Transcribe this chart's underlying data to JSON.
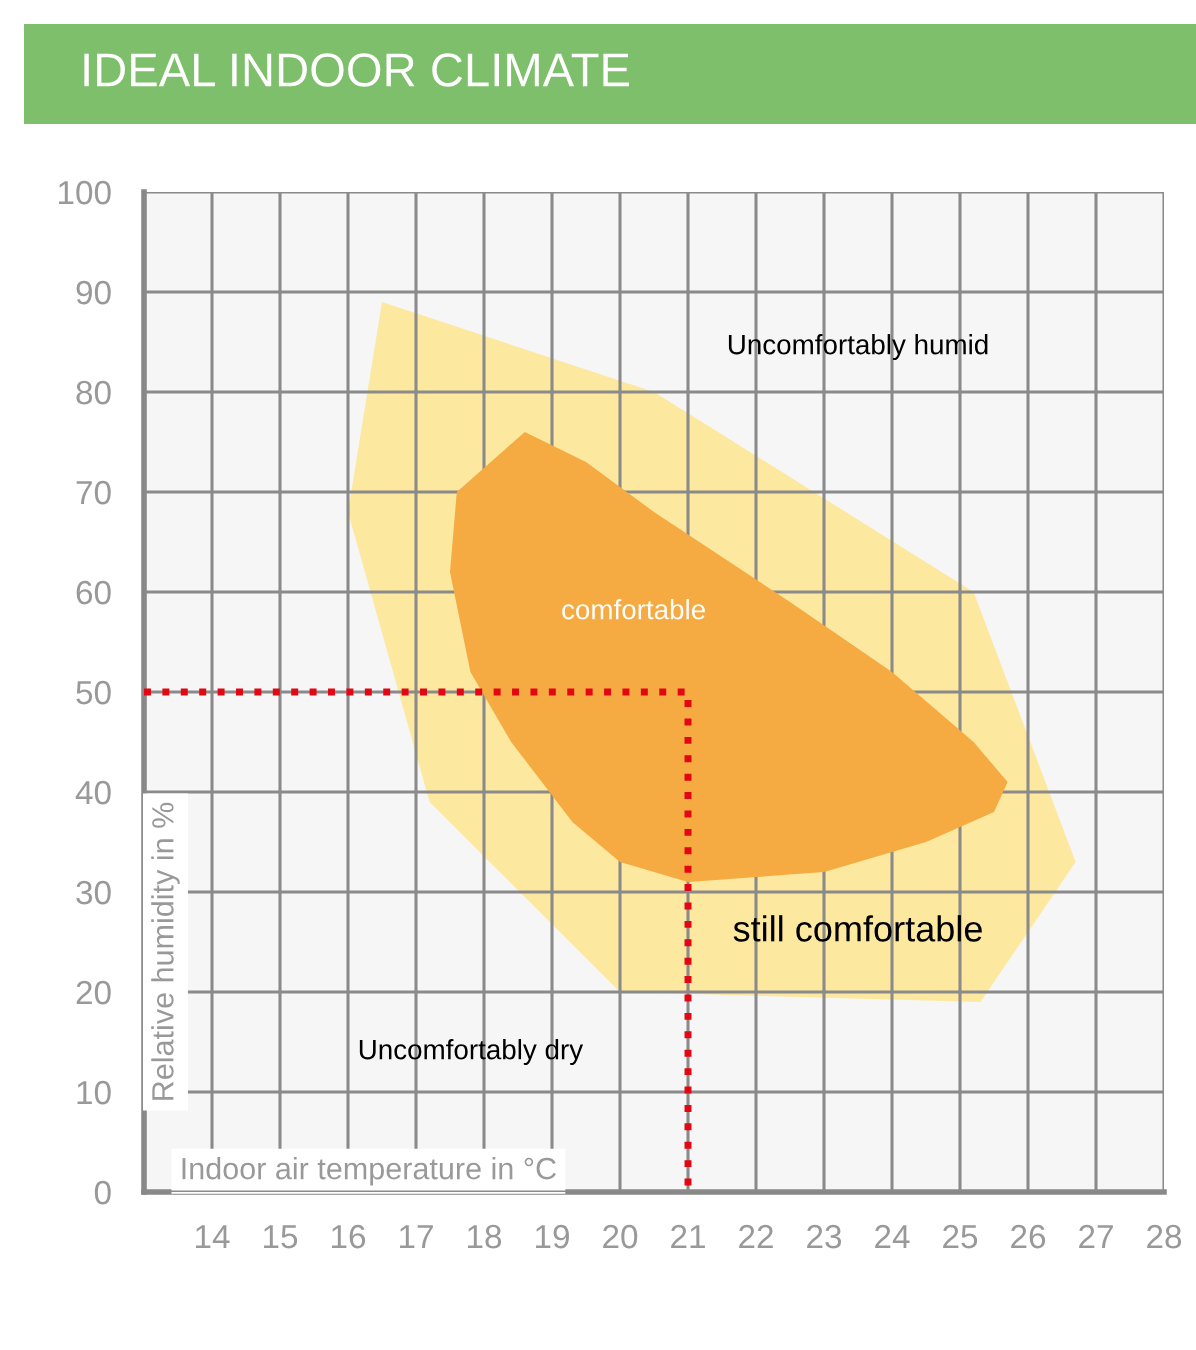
{
  "chart_data": {
    "type": "area",
    "title": "IDEAL INDOOR CLIMATE",
    "xlabel": "Indoor air temperature in °C",
    "ylabel": "Relative humidity in %",
    "xlim": [
      13,
      28
    ],
    "xticks": [
      {
        "value": 13,
        "label": null
      },
      14,
      15,
      16,
      17,
      18,
      19,
      20,
      21,
      22,
      23,
      24,
      25,
      26,
      27,
      28
    ],
    "ylim": [
      0,
      100
    ],
    "yticks": [
      0,
      10,
      20,
      30,
      40,
      50,
      60,
      70,
      80,
      90,
      100
    ],
    "grid": true,
    "series": [
      {
        "color": "#fde8a0",
        "x": [
          16.5,
          20.5,
          25.2,
          26.7,
          25.3,
          20,
          17.2,
          16,
          16.5
        ],
        "values": [
          89,
          80,
          60,
          33,
          19,
          20,
          39,
          68,
          89
        ]
      },
      {
        "color": "#f5aa42",
        "x": [
          18.6,
          19.5,
          20.5,
          22.5,
          24,
          25.2,
          25.7,
          25.5,
          24.5,
          23,
          21,
          20,
          19.3,
          18.4,
          17.8,
          17.5,
          17.6,
          18.6
        ],
        "values": [
          76,
          73,
          68,
          59,
          52,
          45,
          41,
          38,
          35,
          32,
          31,
          33,
          37,
          45,
          52,
          62,
          70,
          76
        ]
      },
      {
        "type": "line",
        "color": "#e30613",
        "line_style": "dotted",
        "x": [
          13,
          21,
          21
        ],
        "values": [
          50,
          50,
          0
        ]
      }
    ],
    "annotations": [
      "Uncomfortably humid",
      "comfortable",
      "still comfortable",
      "Uncomfortably dry"
    ]
  }
}
